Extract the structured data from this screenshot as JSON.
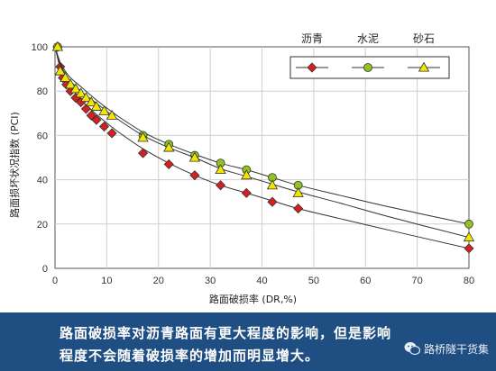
{
  "chart_data": {
    "type": "line",
    "title": "",
    "xlabel": "路面破损率 (DR,%)",
    "ylabel": "路面损坏状况指数 (PCI)",
    "xlim": [
      0,
      80
    ],
    "ylim": [
      0,
      100
    ],
    "x_ticks": [
      "0",
      "10",
      "20",
      "30",
      "40",
      "50",
      "60",
      "70",
      "80"
    ],
    "y_ticks": [
      "0",
      "20",
      "40",
      "60",
      "80",
      "100"
    ],
    "grid": true,
    "legend_placement": "top-right",
    "series": [
      {
        "name": "沥青",
        "color": "#d62020",
        "marker": "diamond",
        "points": [
          [
            0.5,
            100
          ],
          [
            1,
            91
          ],
          [
            1.5,
            86
          ],
          [
            2.2,
            83
          ],
          [
            3,
            80
          ],
          [
            4,
            77
          ],
          [
            5,
            75
          ],
          [
            6,
            72
          ],
          [
            7,
            69
          ],
          [
            8,
            67
          ],
          [
            9.5,
            64
          ],
          [
            11,
            61
          ],
          [
            17,
            52
          ],
          [
            22,
            47
          ],
          [
            27,
            42
          ],
          [
            32,
            37.5
          ],
          [
            37,
            34
          ],
          [
            42,
            30
          ],
          [
            47,
            27
          ],
          [
            80,
            9
          ]
        ],
        "curve": [
          [
            0,
            100
          ],
          [
            1,
            90.5
          ],
          [
            2,
            86
          ],
          [
            3,
            82
          ],
          [
            5,
            76
          ],
          [
            8,
            69.5
          ],
          [
            12,
            62
          ],
          [
            17,
            54
          ],
          [
            22,
            47.5
          ],
          [
            27,
            42
          ],
          [
            32,
            37.5
          ],
          [
            37,
            34
          ],
          [
            42,
            30.5
          ],
          [
            47,
            27
          ],
          [
            55,
            22.5
          ],
          [
            65,
            17
          ],
          [
            80,
            9
          ]
        ]
      },
      {
        "name": "水泥",
        "color": "#8fc31f",
        "marker": "circle",
        "points": [
          [
            0.5,
            100
          ],
          [
            17,
            60
          ],
          [
            22,
            56
          ],
          [
            27,
            51
          ],
          [
            32,
            47.5
          ],
          [
            37,
            44.5
          ],
          [
            42,
            41
          ],
          [
            47,
            37.5
          ],
          [
            80,
            20
          ]
        ],
        "curve": [
          [
            0,
            100
          ],
          [
            1,
            93
          ],
          [
            2,
            89
          ],
          [
            3,
            86
          ],
          [
            5,
            82
          ],
          [
            8,
            76
          ],
          [
            12,
            69
          ],
          [
            17,
            61.5
          ],
          [
            22,
            56
          ],
          [
            27,
            51.5
          ],
          [
            32,
            47.5
          ],
          [
            37,
            44.5
          ],
          [
            42,
            41
          ],
          [
            47,
            37.5
          ],
          [
            55,
            33
          ],
          [
            65,
            27.5
          ],
          [
            80,
            20
          ]
        ]
      },
      {
        "name": "砂石",
        "color": "#f2e600",
        "marker": "triangle",
        "points": [
          [
            0.5,
            100
          ],
          [
            1,
            89
          ],
          [
            2,
            86
          ],
          [
            3,
            83
          ],
          [
            4,
            81
          ],
          [
            5,
            79
          ],
          [
            6,
            77
          ],
          [
            7,
            75
          ],
          [
            8,
            73
          ],
          [
            9.5,
            71
          ],
          [
            11,
            69
          ],
          [
            17,
            59
          ],
          [
            22,
            54.5
          ],
          [
            27,
            50
          ],
          [
            32,
            44.5
          ],
          [
            37,
            42
          ],
          [
            42,
            37.5
          ],
          [
            47,
            34
          ],
          [
            80,
            14
          ]
        ],
        "curve": [
          [
            0,
            100
          ],
          [
            1,
            92
          ],
          [
            2,
            88
          ],
          [
            3,
            84.5
          ],
          [
            5,
            80
          ],
          [
            8,
            74.5
          ],
          [
            12,
            67.5
          ],
          [
            17,
            60
          ],
          [
            22,
            54.5
          ],
          [
            27,
            50
          ],
          [
            32,
            45
          ],
          [
            37,
            41.5
          ],
          [
            42,
            38
          ],
          [
            47,
            34.5
          ],
          [
            55,
            29.5
          ],
          [
            65,
            23
          ],
          [
            80,
            14
          ]
        ]
      }
    ]
  },
  "caption": {
    "line1": "路面破损率对沥青路面有更大程度的影响，但是影响",
    "line2": "程度不会随着破损率的增加而明显增大。"
  },
  "watermark": {
    "text": "路桥隧干货集",
    "icon": "wechat-icon"
  }
}
